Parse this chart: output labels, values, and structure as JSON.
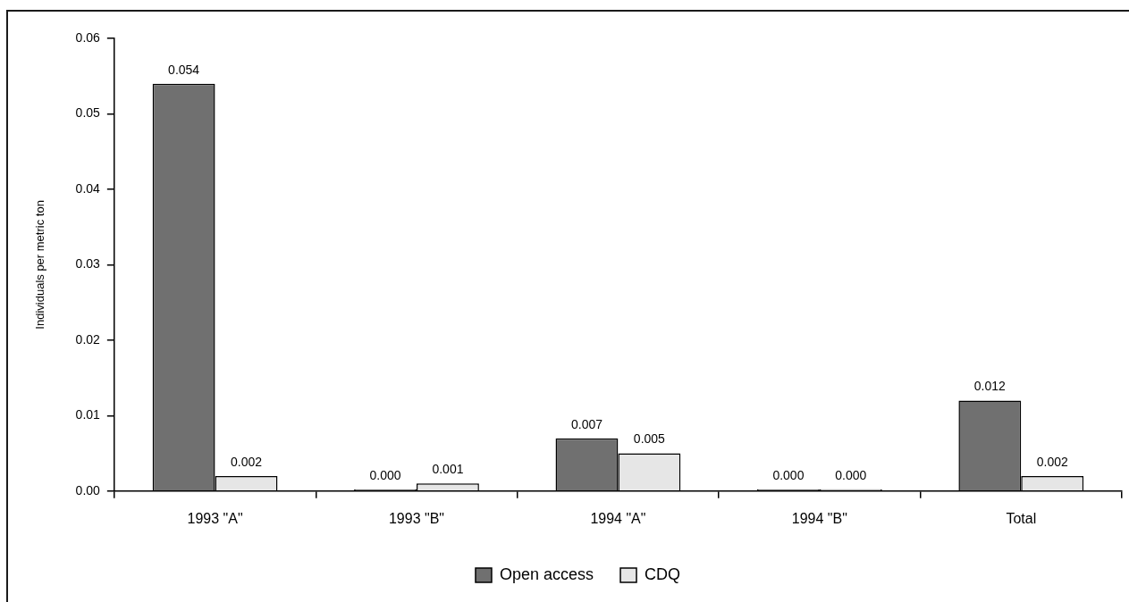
{
  "chart_data": {
    "type": "bar",
    "ylabel": "Individuals per metric ton",
    "categories": [
      "1993 \"A\"",
      "1993 \"B\"",
      "1994 \"A\"",
      "1994 \"B\"",
      "Total"
    ],
    "series": [
      {
        "name": "Open access",
        "color": "#707070",
        "values": [
          0.054,
          0,
          0.007,
          0,
          0.012
        ],
        "value_labels": [
          "0.054",
          "0.000",
          "0.007",
          "0.000",
          "0.012"
        ]
      },
      {
        "name": "CDQ",
        "color": "#e6e6e6",
        "values": [
          0.002,
          0.001,
          0.005,
          0,
          0.002
        ],
        "value_labels": [
          "0.002",
          "0.001",
          "0.005",
          "0.000",
          "0.002"
        ]
      }
    ],
    "ylim": [
      0,
      0.06
    ],
    "yticks": [
      {
        "value": 0,
        "label": "0.00"
      },
      0.01,
      0.02,
      0.03,
      0.04,
      0.05,
      0.06
    ],
    "grid": false,
    "legend": "bottom"
  }
}
